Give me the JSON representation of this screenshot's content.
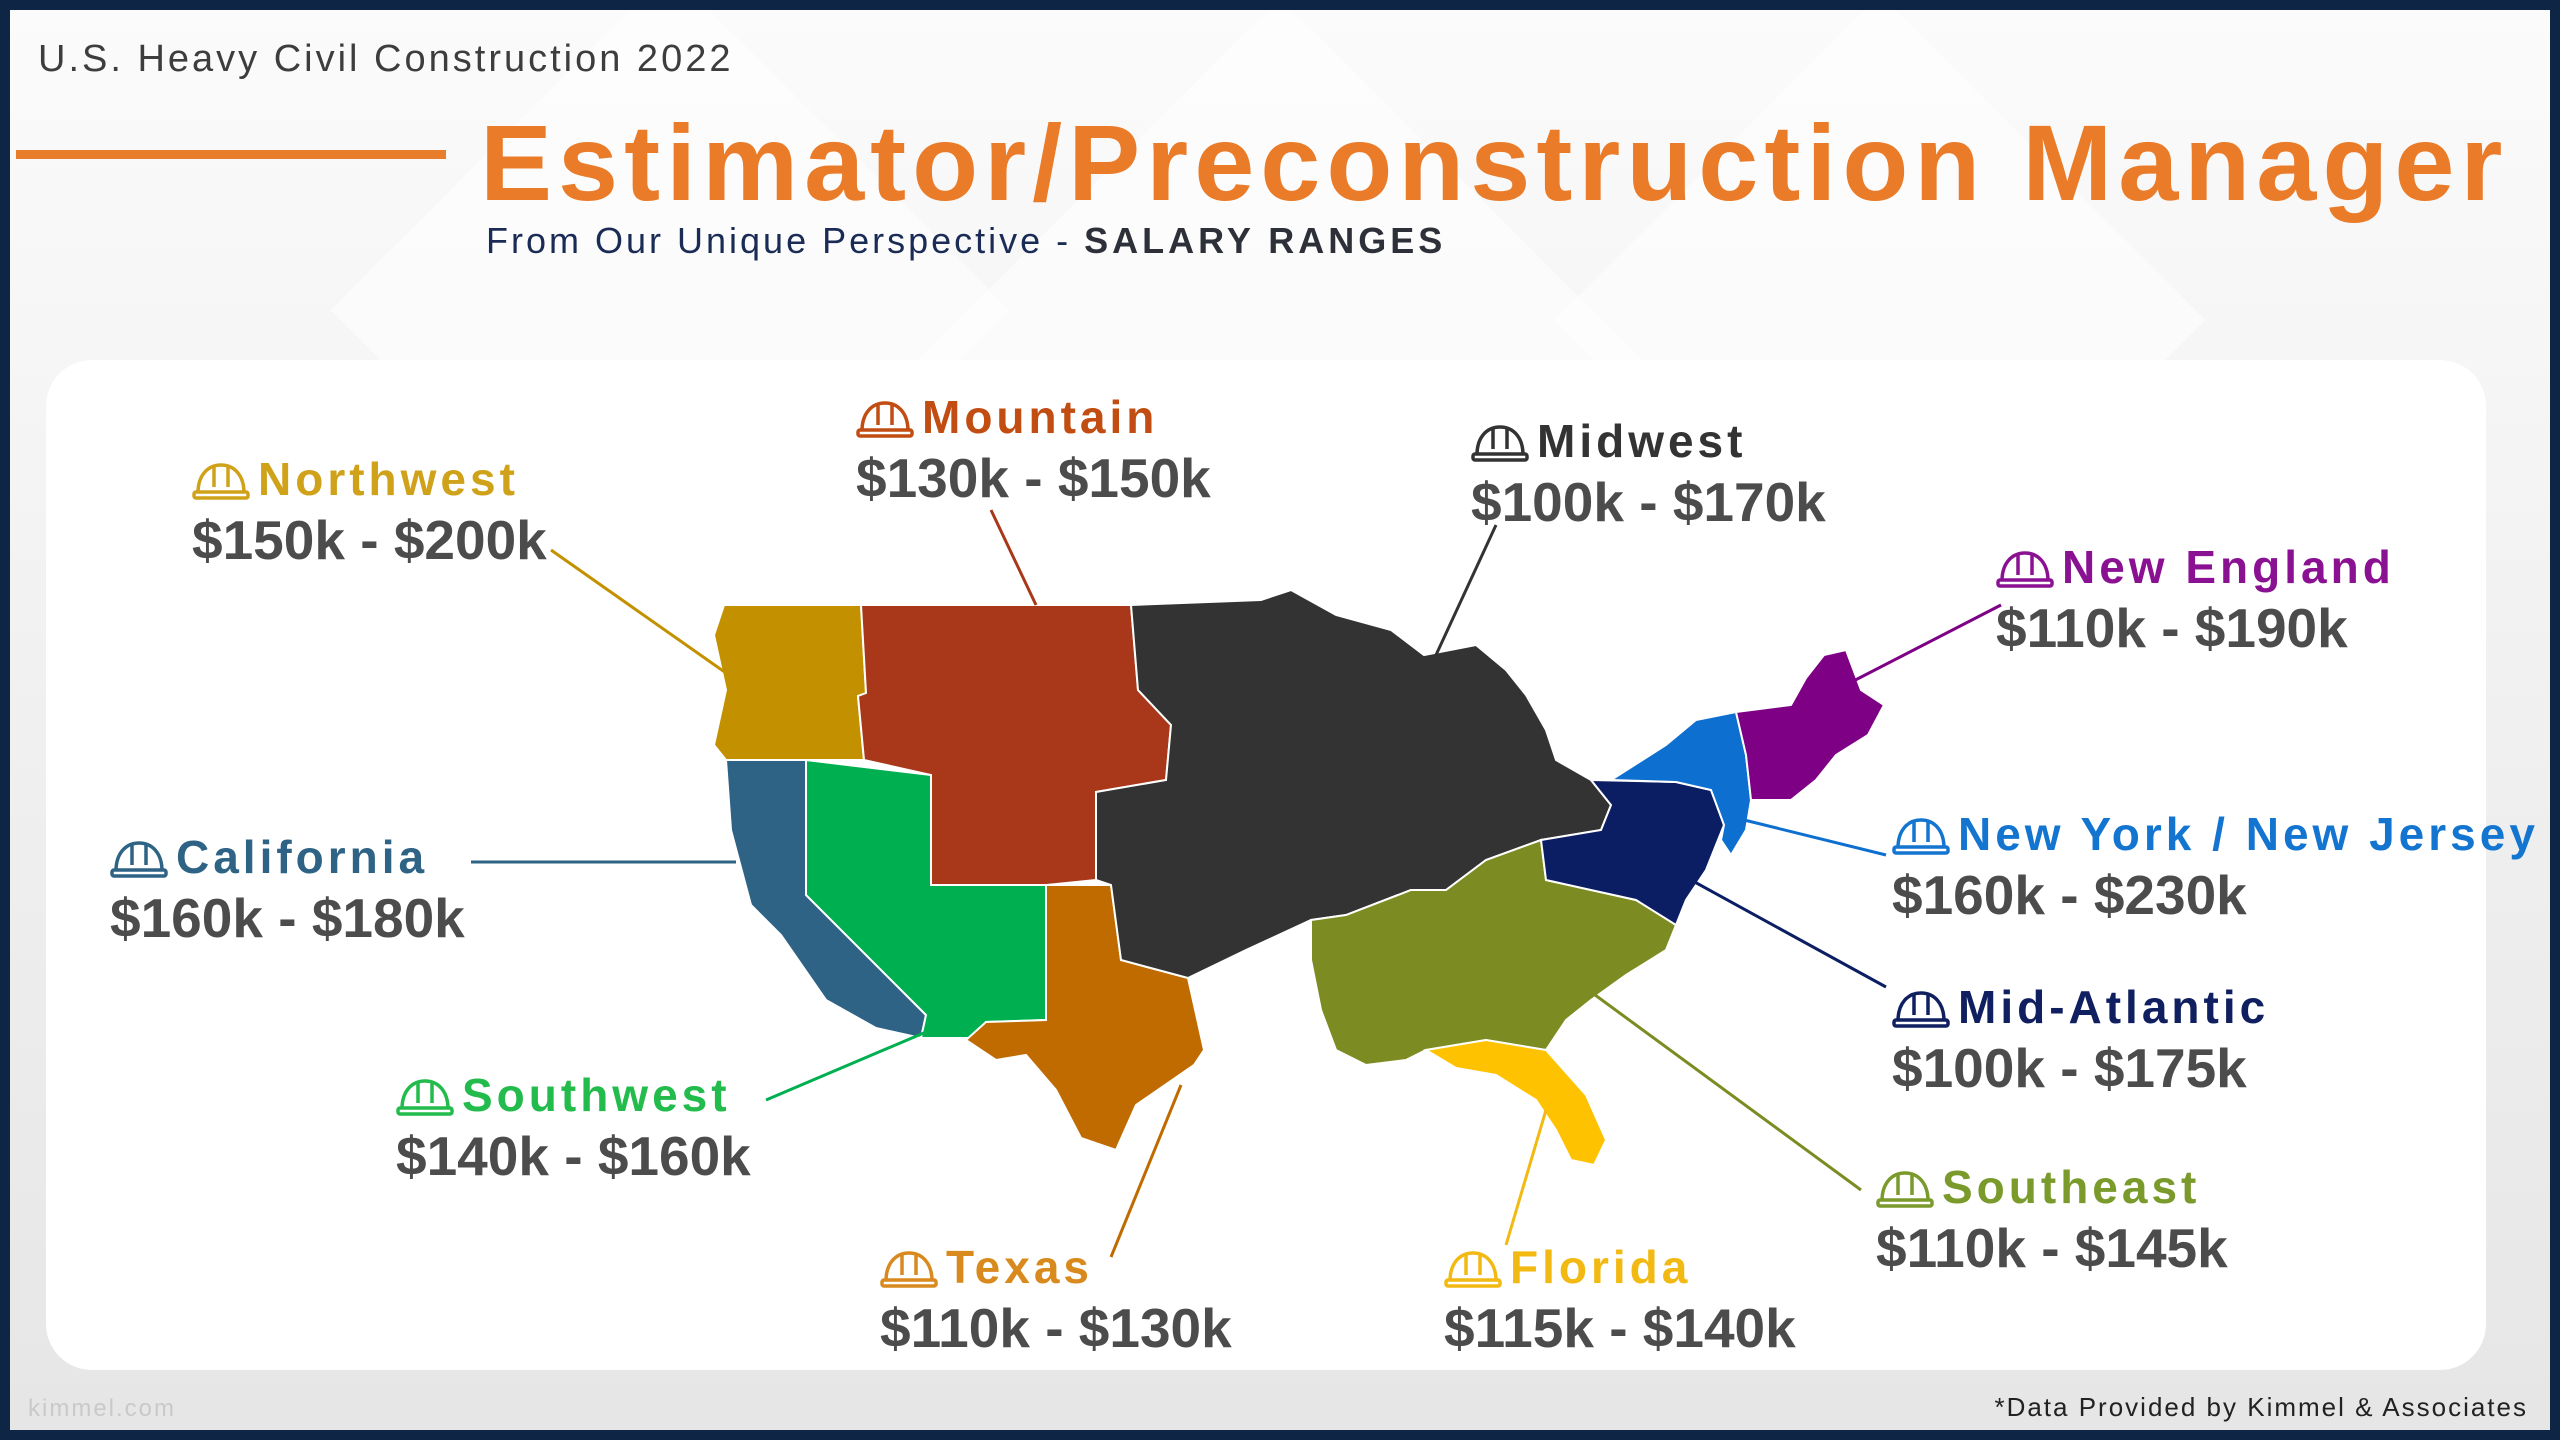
{
  "header": {
    "supertitle": "U.S. Heavy Civil Construction 2022",
    "title": "Estimator/Preconstruction Manager",
    "subtitle_prefix": "From Our Unique Perspective - ",
    "subtitle_emphasis": "SALARY RANGES"
  },
  "regions": [
    {
      "id": "northwest",
      "name": "Northwest",
      "range": "$150k - $200k",
      "color": "#c39100",
      "label_color": "#cfa21a"
    },
    {
      "id": "mountain",
      "name": "Mountain",
      "range": "$130k - $150k",
      "color": "#a9381a",
      "label_color": "#c14d12"
    },
    {
      "id": "midwest",
      "name": "Midwest",
      "range": "$100k - $170k",
      "color": "#333333",
      "label_color": "#333333"
    },
    {
      "id": "new-england",
      "name": "New England",
      "range": "$110k - $190k",
      "color": "#7d0085",
      "label_color": "#8a1292"
    },
    {
      "id": "california",
      "name": "California",
      "range": "$160k - $180k",
      "color": "#2e6386",
      "label_color": "#2e6386"
    },
    {
      "id": "new-york-new-jersey",
      "name": "New York / New Jersey",
      "range": "$160k - $230k",
      "color": "#0d6fd0",
      "label_color": "#1475d1"
    },
    {
      "id": "mid-atlantic",
      "name": "Mid-Atlantic",
      "range": "$100k - $175k",
      "color": "#0c1e63",
      "label_color": "#0f1f5f"
    },
    {
      "id": "southwest",
      "name": "Southwest",
      "range": "$140k - $160k",
      "color": "#00b050",
      "label_color": "#22bb4c"
    },
    {
      "id": "southeast",
      "name": "Southeast",
      "range": "$110k - $145k",
      "color": "#7c8c22",
      "label_color": "#7a9a2b"
    },
    {
      "id": "texas",
      "name": "Texas",
      "range": "$110k - $130k",
      "color": "#bf6b00",
      "label_color": "#d98a1e"
    },
    {
      "id": "florida",
      "name": "Florida",
      "range": "$115k - $140k",
      "color": "#fec200",
      "label_color": "#f2b912"
    }
  ],
  "footer": {
    "watermark": "kimmel.com",
    "source": "*Data Provided by Kimmel & Associates"
  },
  "icons": {
    "region_marker": "hard-hat-icon"
  }
}
